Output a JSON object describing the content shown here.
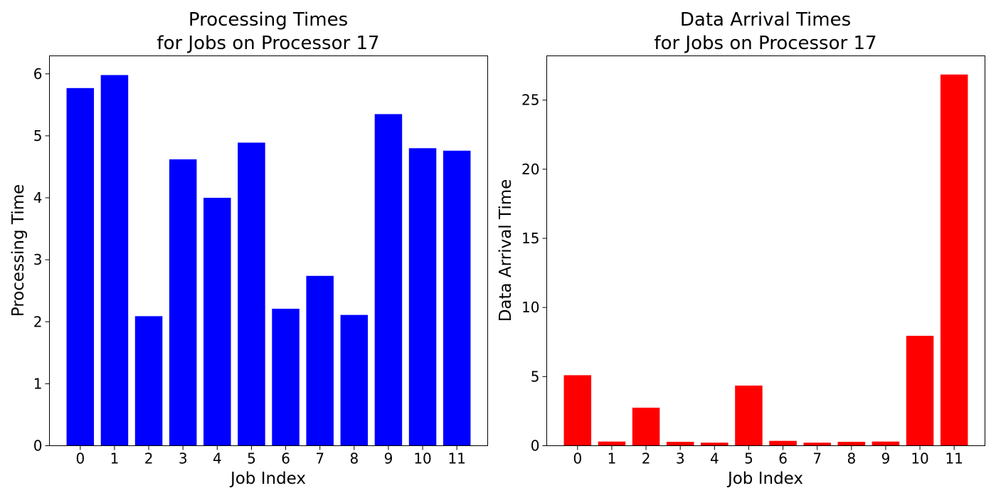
{
  "chart_data": [
    {
      "type": "bar",
      "title_line1": "Processing Times",
      "title_line2": "for Jobs on Processor 17",
      "xlabel": "Job Index",
      "ylabel": "Processing Time",
      "color": "#0000ff",
      "categories": [
        "0",
        "1",
        "2",
        "3",
        "4",
        "5",
        "6",
        "7",
        "8",
        "9",
        "10",
        "11"
      ],
      "values": [
        5.77,
        5.98,
        2.09,
        4.62,
        4.0,
        4.89,
        2.21,
        2.74,
        2.11,
        5.35,
        4.8,
        4.76
      ],
      "ylim": [
        0,
        6.29
      ],
      "yticks": [
        0,
        1,
        2,
        3,
        4,
        5,
        6
      ],
      "grid": false,
      "legend": "none"
    },
    {
      "type": "bar",
      "title_line1": "Data Arrival Times",
      "title_line2": "for Jobs on Processor 17",
      "xlabel": "Job Index",
      "ylabel": "Data Arrival Time",
      "color": "#ff0000",
      "categories": [
        "0",
        "1",
        "2",
        "3",
        "4",
        "5",
        "6",
        "7",
        "8",
        "9",
        "10",
        "11"
      ],
      "values": [
        5.1,
        0.3,
        2.75,
        0.28,
        0.22,
        4.35,
        0.35,
        0.22,
        0.28,
        0.3,
        7.95,
        26.85
      ],
      "ylim": [
        0,
        28.2
      ],
      "yticks": [
        0,
        5,
        10,
        15,
        20,
        25
      ],
      "grid": false,
      "legend": "none"
    }
  ]
}
